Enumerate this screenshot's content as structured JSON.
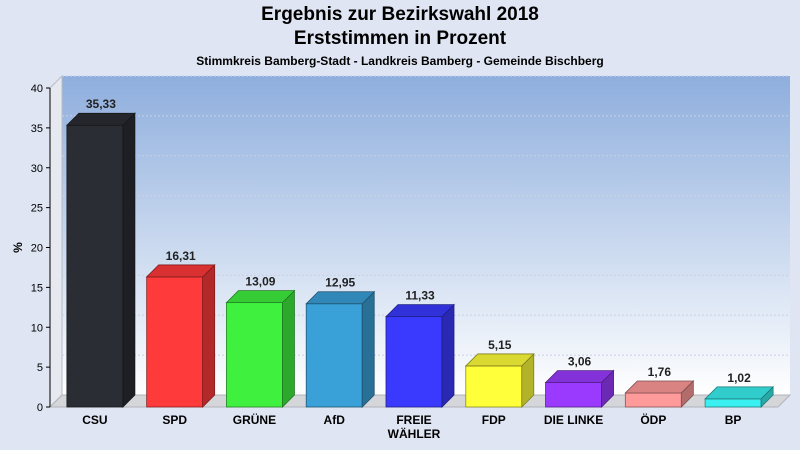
{
  "chart_data": {
    "type": "bar",
    "title": "Ergebnis zur Bezirkswahl 2018",
    "subtitle": "Erststimmen in Prozent",
    "caption": "Stimmkreis Bamberg-Stadt - Landkreis Bamberg - Gemeinde Bischberg",
    "ylabel": "%",
    "xlabel": "",
    "ylim": [
      0,
      40
    ],
    "yticks": [
      0,
      5,
      10,
      15,
      20,
      25,
      30,
      35,
      40
    ],
    "grid": true,
    "categories": [
      "CSU",
      "SPD",
      "GRÜNE",
      "AfD",
      "FREIE WÄHLER",
      "FDP",
      "DIE LINKE",
      "ÖDP",
      "BP"
    ],
    "values": [
      35.33,
      16.31,
      13.09,
      12.95,
      11.33,
      5.15,
      3.06,
      1.76,
      1.02
    ],
    "value_labels": [
      "35,33",
      "16,31",
      "13,09",
      "12,95",
      "11,33",
      "5,15",
      "3,06",
      "1,76",
      "1,02"
    ],
    "colors": [
      "#2a2d34",
      "#ff3a3a",
      "#3ff03f",
      "#3aa0d8",
      "#3a3aff",
      "#ffff3a",
      "#9a3aff",
      "#ff9a9a",
      "#3af0f0"
    ]
  }
}
